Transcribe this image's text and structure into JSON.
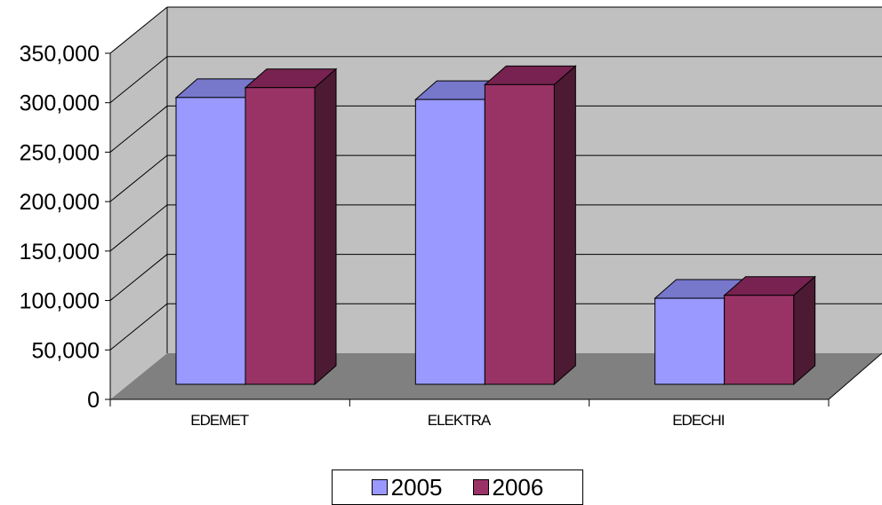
{
  "chart_data": {
    "type": "bar",
    "title": "",
    "xlabel": "",
    "ylabel": "",
    "categories": [
      "EDEMET",
      "ELEKTRA",
      "EDECHI"
    ],
    "series": [
      {
        "name": "2005",
        "values": [
          290000,
          288000,
          87000
        ],
        "color": "#9999ff",
        "top_color": "#7777cc",
        "side_color": "#6666aa"
      },
      {
        "name": "2006",
        "values": [
          300000,
          303000,
          90000
        ],
        "color": "#993366",
        "top_color": "#772250",
        "side_color": "#4d1a33"
      }
    ],
    "ylim": [
      0,
      350000
    ],
    "yticks": [
      "0",
      "50,000",
      "100,000",
      "150,000",
      "200,000",
      "250,000",
      "300,000",
      "350,000"
    ],
    "grid": true,
    "three_d": true,
    "legend_position": "bottom",
    "colors": {
      "wall": "#c0c0c0",
      "floor": "#808080"
    }
  }
}
